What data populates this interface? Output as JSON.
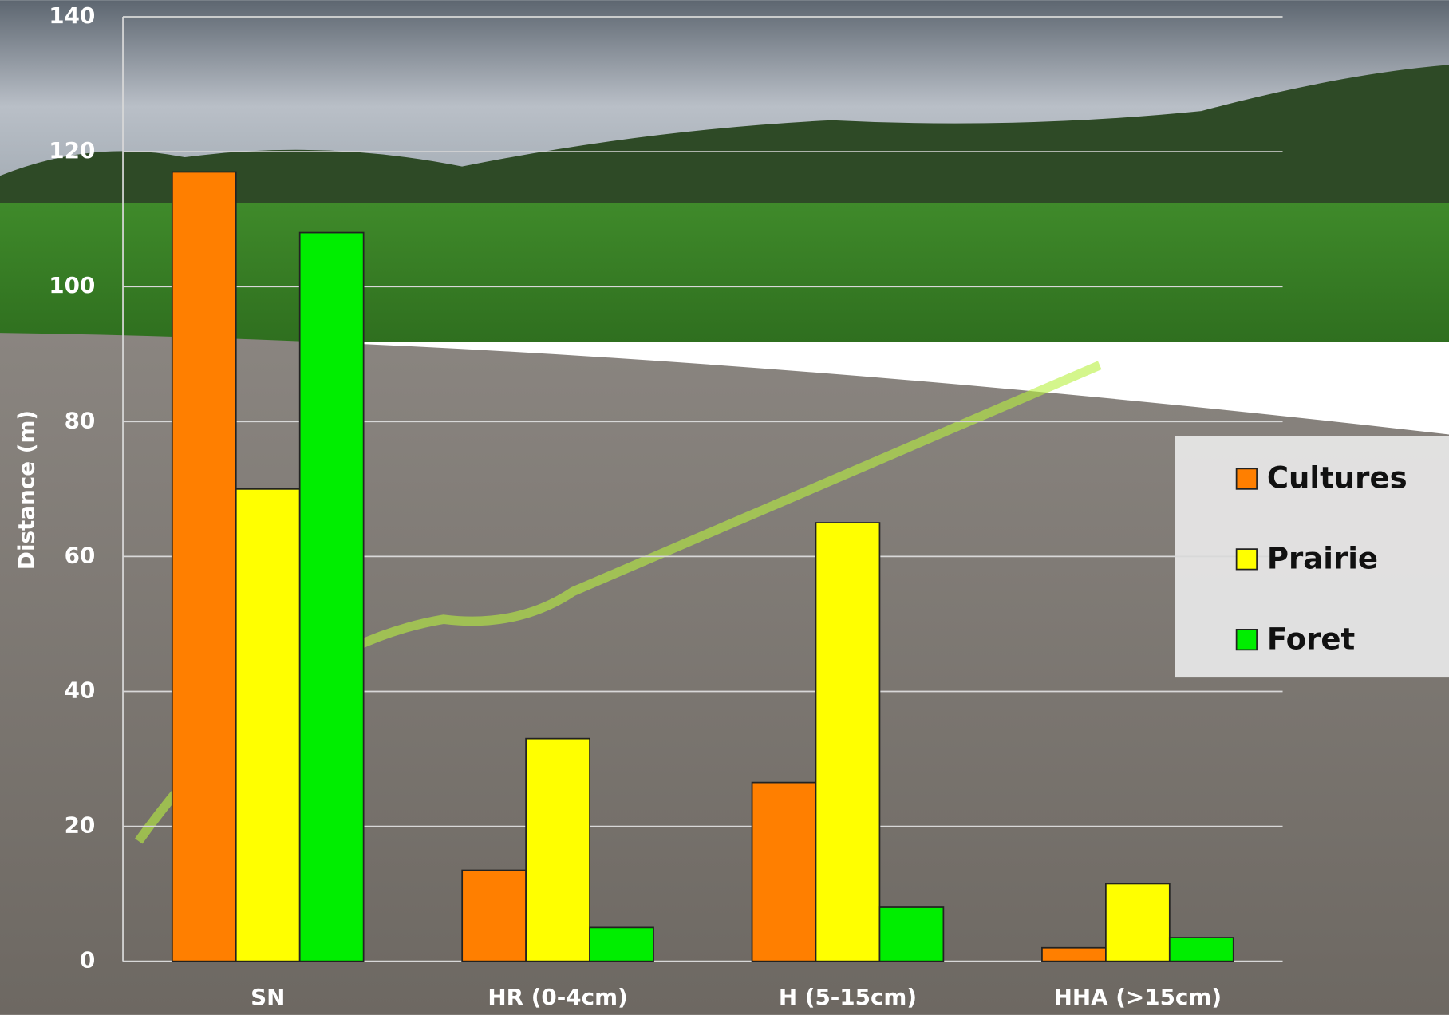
{
  "chart_data": {
    "type": "bar",
    "y_label": "Distance (m)",
    "categories": [
      "SN",
      "HR (0-4cm)",
      "H (5-15cm)",
      "HHA (>15cm)"
    ],
    "series": [
      {
        "name": "Cultures",
        "color": "#ff7f00",
        "values": [
          117,
          13.5,
          26.5,
          2
        ]
      },
      {
        "name": "Prairie",
        "color": "#ffff00",
        "values": [
          70,
          33,
          65,
          11.5
        ]
      },
      {
        "name": "Foret",
        "color": "#00ee00",
        "values": [
          108,
          5,
          8,
          3.5
        ]
      }
    ],
    "ylim": [
      0,
      140
    ],
    "yticks": [
      0,
      20,
      40,
      60,
      80,
      100,
      120,
      140
    ],
    "grid": true,
    "legend": "right"
  }
}
